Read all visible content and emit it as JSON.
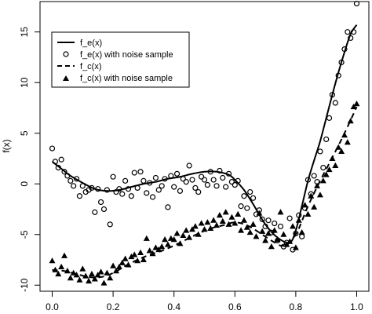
{
  "chart_data": {
    "type": "scatter",
    "title": "",
    "xlabel": "",
    "ylabel": "f(x)",
    "xlim": [
      0,
      1
    ],
    "ylim": [
      -10.6,
      18
    ],
    "x_ticks": [
      0.0,
      0.2,
      0.4,
      0.6,
      0.8,
      1.0
    ],
    "x_tick_labels": [
      "0.0",
      "0.2",
      "0.4",
      "0.6",
      "0.8",
      "1.0"
    ],
    "y_ticks": [
      -10,
      -5,
      0,
      5,
      10,
      15
    ],
    "y_tick_labels": [
      "-10",
      "-5",
      "0",
      "5",
      "10",
      "15"
    ],
    "grid": false,
    "legend_position": "top-left",
    "series": [
      {
        "name": "f_e(x)",
        "style": "solid-line",
        "x": [
          0.0,
          0.03,
          0.06,
          0.1,
          0.14,
          0.18,
          0.22,
          0.26,
          0.3,
          0.34,
          0.38,
          0.42,
          0.46,
          0.5,
          0.54,
          0.58,
          0.6,
          0.63,
          0.66,
          0.7,
          0.74,
          0.78,
          0.8,
          0.82,
          0.84,
          0.86,
          0.88,
          0.9,
          0.92,
          0.94,
          0.96,
          0.98,
          1.0
        ],
        "y": [
          2.2,
          1.5,
          0.8,
          0.1,
          -0.5,
          -0.7,
          -0.6,
          -0.3,
          0.0,
          0.2,
          0.5,
          0.7,
          1.0,
          1.2,
          1.2,
          0.9,
          0.4,
          -0.6,
          -2.0,
          -4.0,
          -5.3,
          -5.8,
          -4.6,
          -2.2,
          0.3,
          2.3,
          4.2,
          6.5,
          8.8,
          11.0,
          13.0,
          14.8,
          15.7
        ]
      },
      {
        "name": "f_e(x) with noise sample",
        "style": "open-circle",
        "x": [
          0.0,
          0.01,
          0.02,
          0.03,
          0.04,
          0.05,
          0.06,
          0.07,
          0.08,
          0.09,
          0.1,
          0.11,
          0.12,
          0.13,
          0.14,
          0.15,
          0.16,
          0.17,
          0.18,
          0.19,
          0.2,
          0.21,
          0.22,
          0.23,
          0.24,
          0.25,
          0.26,
          0.27,
          0.28,
          0.29,
          0.3,
          0.31,
          0.32,
          0.33,
          0.34,
          0.35,
          0.36,
          0.37,
          0.38,
          0.39,
          0.4,
          0.41,
          0.42,
          0.43,
          0.44,
          0.45,
          0.46,
          0.47,
          0.48,
          0.49,
          0.5,
          0.51,
          0.52,
          0.53,
          0.54,
          0.55,
          0.56,
          0.57,
          0.58,
          0.59,
          0.6,
          0.61,
          0.62,
          0.63,
          0.64,
          0.65,
          0.66,
          0.67,
          0.68,
          0.69,
          0.7,
          0.71,
          0.72,
          0.73,
          0.74,
          0.75,
          0.76,
          0.77,
          0.78,
          0.79,
          0.8,
          0.81,
          0.82,
          0.83,
          0.84,
          0.85,
          0.86,
          0.87,
          0.88,
          0.89,
          0.9,
          0.91,
          0.92,
          0.93,
          0.94,
          0.95,
          0.96,
          0.97,
          0.98,
          0.99,
          1.0
        ],
        "y": [
          3.5,
          2.2,
          1.6,
          2.4,
          1.2,
          0.8,
          0.3,
          -0.2,
          0.5,
          -1.2,
          -0.2,
          -0.8,
          -0.6,
          -0.4,
          -2.8,
          -0.5,
          -1.8,
          -2.5,
          -0.6,
          -4.0,
          0.7,
          -0.8,
          -0.5,
          -1.0,
          0.3,
          -0.5,
          -1.2,
          1.1,
          -0.4,
          1.2,
          0.3,
          -0.9,
          0.1,
          -1.3,
          0.6,
          -0.6,
          -0.2,
          0.5,
          -2.3,
          0.8,
          -0.3,
          1.0,
          -0.7,
          0.5,
          0.2,
          1.8,
          0.4,
          -0.4,
          -0.8,
          0.7,
          0.4,
          -0.1,
          1.2,
          0.4,
          -0.2,
          1.3,
          0.6,
          -0.3,
          1.0,
          0.2,
          -0.1,
          0.3,
          -2.2,
          -1.2,
          -2.4,
          -0.8,
          -1.4,
          -3.0,
          -2.6,
          -3.5,
          -4.2,
          -3.6,
          -4.8,
          -3.9,
          -5.6,
          -4.2,
          -6.2,
          -5.8,
          -3.4,
          -6.5,
          -4.9,
          -3.1,
          -5.2,
          -2.4,
          0.4,
          -1.0,
          0.8,
          0.2,
          3.2,
          1.6,
          4.4,
          6.5,
          8.8,
          8.0,
          10.7,
          12.0,
          13.3,
          15.0,
          14.4,
          15.0,
          17.8
        ]
      },
      {
        "name": "f_c(x)",
        "style": "dashed-line",
        "x": [
          0.0,
          0.04,
          0.08,
          0.12,
          0.16,
          0.2,
          0.24,
          0.28,
          0.32,
          0.36,
          0.4,
          0.44,
          0.48,
          0.52,
          0.56,
          0.6,
          0.64,
          0.68,
          0.72,
          0.76,
          0.8,
          0.84,
          0.88,
          0.92,
          0.96,
          1.0
        ],
        "y": [
          -8.5,
          -8.6,
          -8.9,
          -9.2,
          -9.2,
          -8.8,
          -8.1,
          -7.5,
          -7.0,
          -6.6,
          -6.1,
          -5.5,
          -4.9,
          -4.4,
          -4.1,
          -3.8,
          -4.1,
          -4.8,
          -5.6,
          -6.1,
          -5.0,
          -2.2,
          0.3,
          2.6,
          5.0,
          7.6
        ]
      },
      {
        "name": "f_c(x) with noise sample",
        "style": "filled-triangle",
        "x": [
          0.0,
          0.01,
          0.02,
          0.03,
          0.04,
          0.05,
          0.06,
          0.07,
          0.08,
          0.09,
          0.1,
          0.11,
          0.12,
          0.13,
          0.14,
          0.15,
          0.16,
          0.17,
          0.18,
          0.19,
          0.2,
          0.21,
          0.22,
          0.23,
          0.24,
          0.25,
          0.26,
          0.27,
          0.28,
          0.29,
          0.3,
          0.31,
          0.32,
          0.33,
          0.34,
          0.35,
          0.36,
          0.37,
          0.38,
          0.39,
          0.4,
          0.41,
          0.42,
          0.43,
          0.44,
          0.45,
          0.46,
          0.47,
          0.48,
          0.49,
          0.5,
          0.51,
          0.52,
          0.53,
          0.54,
          0.55,
          0.56,
          0.57,
          0.58,
          0.59,
          0.6,
          0.61,
          0.62,
          0.63,
          0.64,
          0.65,
          0.66,
          0.67,
          0.68,
          0.69,
          0.7,
          0.71,
          0.72,
          0.73,
          0.74,
          0.75,
          0.76,
          0.77,
          0.78,
          0.79,
          0.8,
          0.81,
          0.82,
          0.83,
          0.84,
          0.85,
          0.86,
          0.87,
          0.88,
          0.89,
          0.9,
          0.91,
          0.92,
          0.93,
          0.94,
          0.95,
          0.96,
          0.97,
          0.98,
          0.99,
          1.0
        ],
        "y": [
          -7.6,
          -8.5,
          -8.9,
          -8.2,
          -7.1,
          -8.6,
          -9.3,
          -8.8,
          -9.0,
          -9.5,
          -8.4,
          -9.1,
          -9.6,
          -8.9,
          -9.4,
          -9.0,
          -8.7,
          -9.8,
          -8.8,
          -9.3,
          -8.1,
          -8.6,
          -8.2,
          -7.8,
          -7.4,
          -8.0,
          -7.2,
          -7.0,
          -7.6,
          -6.8,
          -7.5,
          -5.4,
          -6.6,
          -6.9,
          -6.3,
          -6.5,
          -6.2,
          -5.5,
          -6.0,
          -5.4,
          -5.5,
          -4.9,
          -5.9,
          -5.1,
          -4.6,
          -5.3,
          -4.5,
          -4.2,
          -5.0,
          -3.9,
          -4.5,
          -3.8,
          -4.4,
          -3.6,
          -4.1,
          -3.1,
          -3.7,
          -2.8,
          -4.0,
          -3.3,
          -3.9,
          -3.0,
          -4.6,
          -3.6,
          -4.3,
          -4.8,
          -4.0,
          -5.2,
          -2.9,
          -4.7,
          -5.6,
          -4.9,
          -6.2,
          -4.6,
          -5.5,
          -2.8,
          -5.0,
          -6.0,
          -5.7,
          -4.2,
          -6.3,
          -3.6,
          -4.8,
          -2.1,
          -3.0,
          -1.2,
          -2.3,
          -0.2,
          -1.1,
          0.3,
          0.9,
          1.4,
          2.5,
          1.8,
          3.6,
          3.2,
          4.8,
          4.1,
          6.2,
          7.6,
          7.9
        ]
      }
    ]
  },
  "colors": {
    "ink": "#000000",
    "background": "#ffffff"
  }
}
